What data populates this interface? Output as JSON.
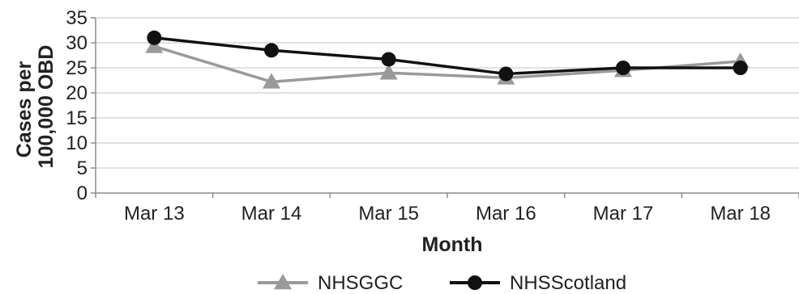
{
  "chart_data": {
    "type": "line",
    "xlabel": "Month",
    "ylabel": "Cases per 100,000 OBD",
    "categories": [
      "Mar 13",
      "Mar 14",
      "Mar 15",
      "Mar 16",
      "Mar 17",
      "Mar 18"
    ],
    "ylim": [
      0,
      35
    ],
    "yticks": [
      0,
      5,
      10,
      15,
      20,
      25,
      30,
      35
    ],
    "grid": true,
    "legend": "bottom",
    "series": [
      {
        "name": "NHSGGC",
        "values": [
          29.3,
          22.2,
          24.0,
          23.0,
          24.5,
          26.3
        ],
        "color": "#9a9a9a",
        "marker": "triangle"
      },
      {
        "name": "NHSScotland",
        "values": [
          31.0,
          28.5,
          26.7,
          23.8,
          25.0,
          25.0
        ],
        "color": "#111111",
        "marker": "circle"
      }
    ]
  }
}
